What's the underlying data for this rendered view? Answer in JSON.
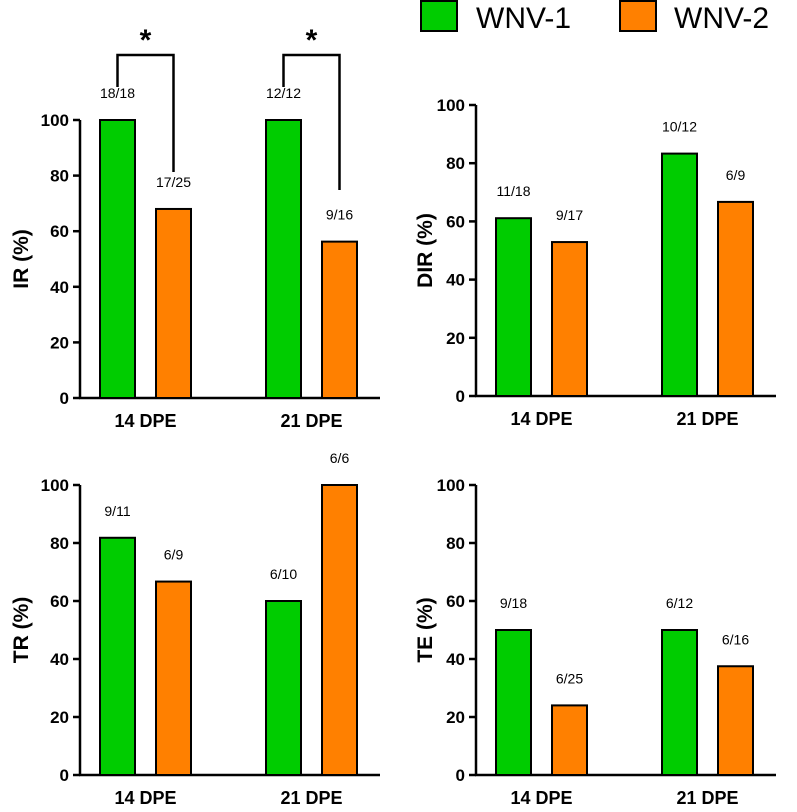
{
  "legend": [
    {
      "label": "WNV-1",
      "color": "#00cc00"
    },
    {
      "label": "WNV-2",
      "color": "#ff8000"
    }
  ],
  "chart_data": [
    {
      "type": "bar",
      "ylabel": "IR (%)",
      "categories": [
        "14 DPE",
        "21 DPE"
      ],
      "ylim": [
        0,
        100
      ],
      "yticks": [
        0,
        20,
        40,
        60,
        80,
        100
      ],
      "series": [
        {
          "name": "WNV-1",
          "values": [
            100,
            100
          ],
          "labels": [
            "18/18",
            "12/12"
          ]
        },
        {
          "name": "WNV-2",
          "values": [
            68,
            56.25
          ],
          "labels": [
            "17/25",
            "9/16"
          ]
        }
      ],
      "significance": [
        {
          "category": "14 DPE",
          "label": "*"
        },
        {
          "category": "21 DPE",
          "label": "*"
        }
      ]
    },
    {
      "type": "bar",
      "ylabel": "DIR (%)",
      "categories": [
        "14 DPE",
        "21 DPE"
      ],
      "ylim": [
        0,
        100
      ],
      "yticks": [
        0,
        20,
        40,
        60,
        80,
        100
      ],
      "series": [
        {
          "name": "WNV-1",
          "values": [
            61.1,
            83.3
          ],
          "labels": [
            "11/18",
            "10/12"
          ]
        },
        {
          "name": "WNV-2",
          "values": [
            52.9,
            66.7
          ],
          "labels": [
            "9/17",
            "6/9"
          ]
        }
      ]
    },
    {
      "type": "bar",
      "ylabel": "TR (%)",
      "categories": [
        "14 DPE",
        "21 DPE"
      ],
      "ylim": [
        0,
        100
      ],
      "yticks": [
        0,
        20,
        40,
        60,
        80,
        100
      ],
      "series": [
        {
          "name": "WNV-1",
          "values": [
            81.8,
            60
          ],
          "labels": [
            "9/11",
            "6/10"
          ]
        },
        {
          "name": "WNV-2",
          "values": [
            66.7,
            100
          ],
          "labels": [
            "6/9",
            "6/6"
          ]
        }
      ]
    },
    {
      "type": "bar",
      "ylabel": "TE (%)",
      "categories": [
        "14 DPE",
        "21 DPE"
      ],
      "ylim": [
        0,
        100
      ],
      "yticks": [
        0,
        20,
        40,
        60,
        80,
        100
      ],
      "series": [
        {
          "name": "WNV-1",
          "values": [
            50,
            50
          ],
          "labels": [
            "9/18",
            "6/12"
          ]
        },
        {
          "name": "WNV-2",
          "values": [
            24,
            37.5
          ],
          "labels": [
            "6/25",
            "6/16"
          ]
        }
      ]
    }
  ]
}
